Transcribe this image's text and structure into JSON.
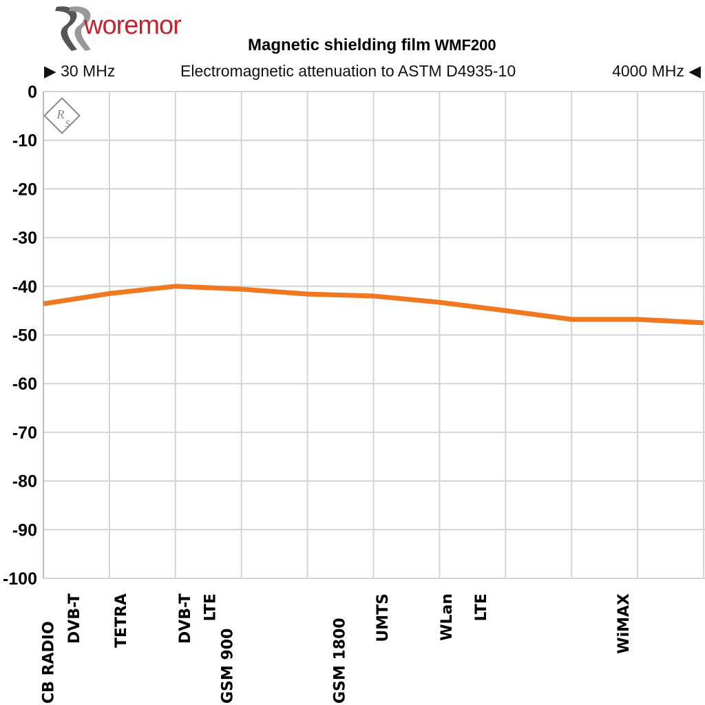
{
  "header": {
    "brand": "woremor",
    "title": "Magnetic shielding film",
    "model": "WMF200",
    "subtitle": "Electromagnetic attenuation to ASTM D4935-10",
    "range_start": "30 MHz",
    "range_end": "4000 MHz",
    "watermark": "R&S"
  },
  "colors": {
    "line": "#f07820",
    "grid": "#d4d4d4",
    "brand": "#c8202c"
  },
  "chart_data": {
    "type": "line",
    "title": "Magnetic shielding film WMF200",
    "subtitle": "Electromagnetic attenuation to ASTM D4935-10",
    "xlabel": "",
    "ylabel": "",
    "ylim": [
      -100,
      0
    ],
    "yticks": [
      0,
      -10,
      -20,
      -30,
      -40,
      -50,
      -60,
      -70,
      -80,
      -90,
      -100
    ],
    "ytick_labels": [
      "0",
      "-10",
      "-20",
      "-30",
      "-40",
      "-50",
      "-60",
      "-70",
      "-80",
      "-90",
      "-100"
    ],
    "xrange": [
      "30 MHz",
      "4000 MHz"
    ],
    "grid": true,
    "series": [
      {
        "values": [
          -43.6,
          -41.5,
          -40.0,
          -40.6,
          -41.6,
          -42.0,
          -43.3,
          -45.0,
          -46.8,
          -46.8,
          -47.5
        ]
      }
    ],
    "band_labels": [
      "CB RADIO",
      "DVB-T",
      "TETRA",
      "DVB-T",
      "LTE",
      "GSM 900",
      "GSM 1800",
      "UMTS",
      "WLan",
      "LTE",
      "WiMAX"
    ]
  }
}
